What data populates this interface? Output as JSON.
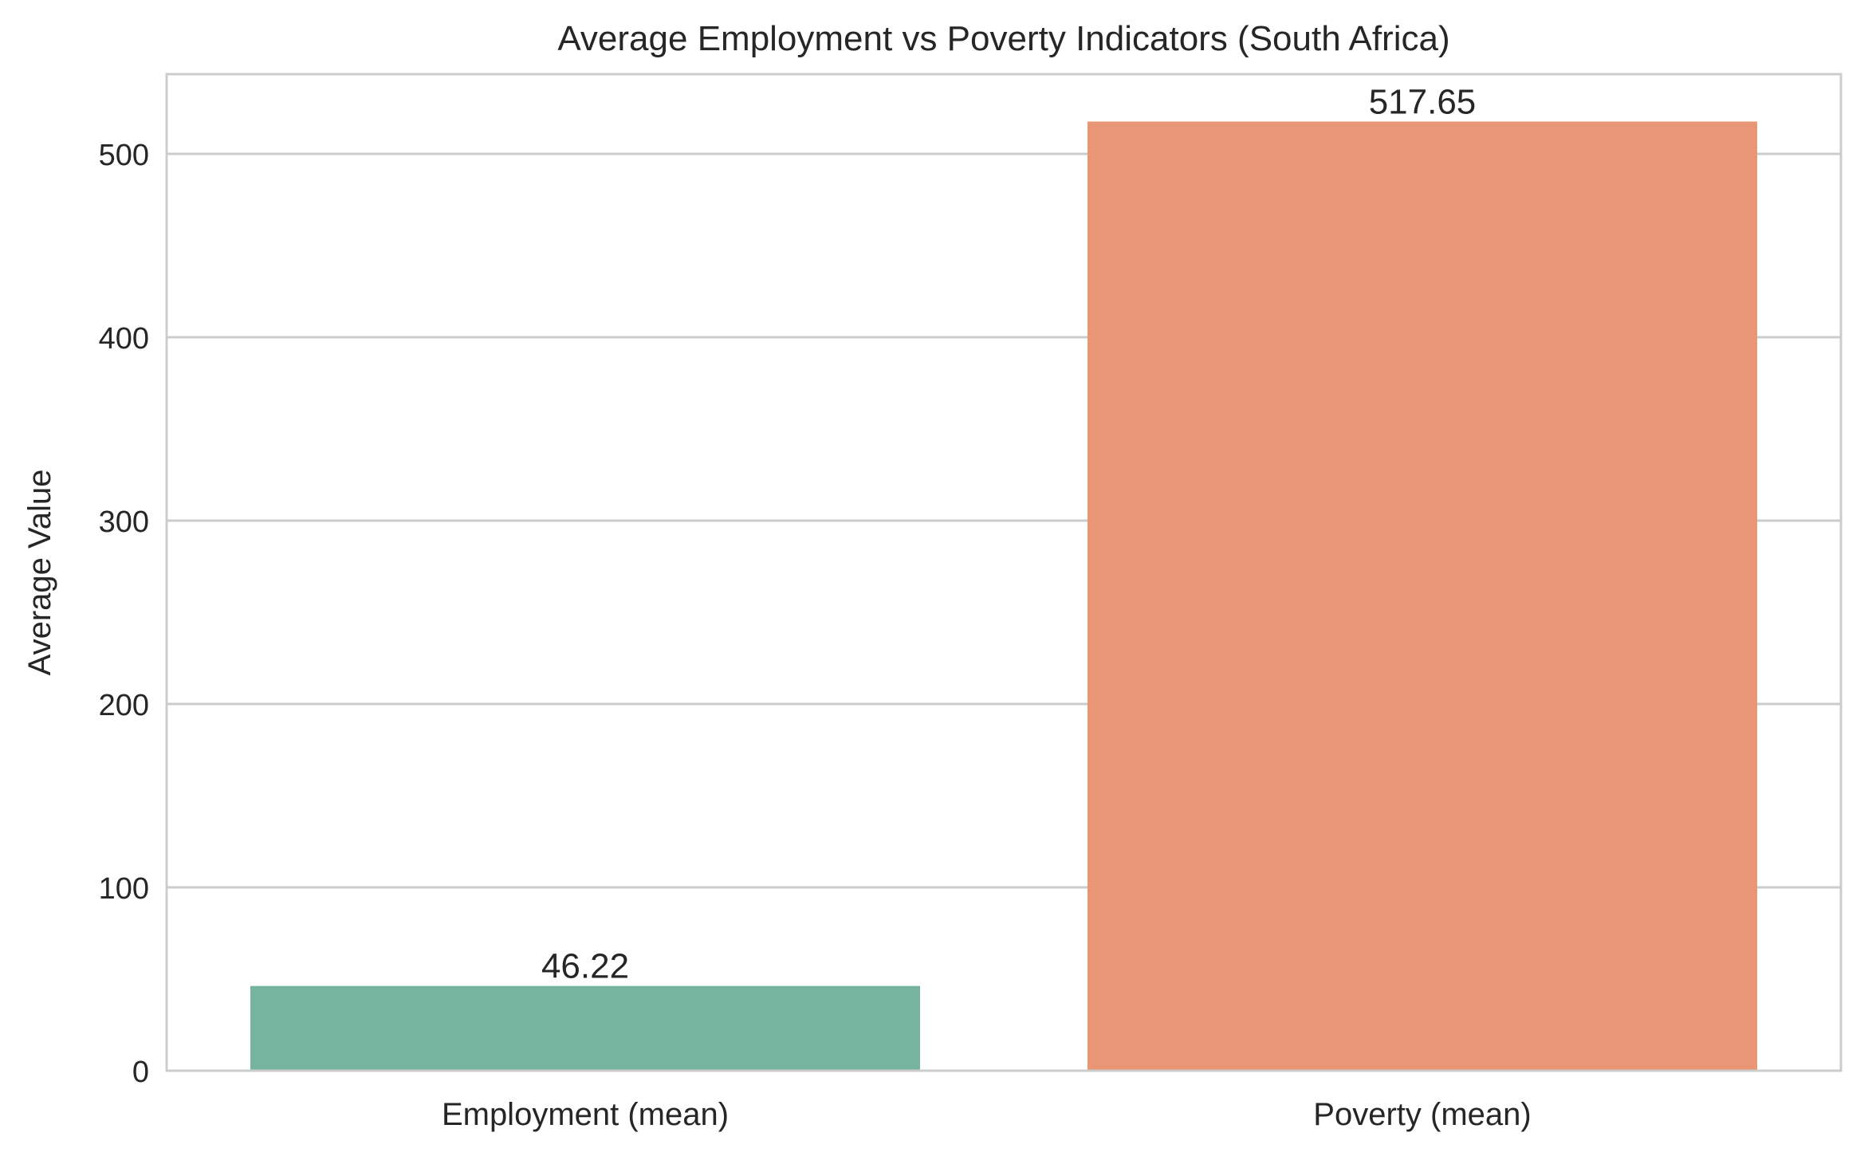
{
  "chart_data": {
    "type": "bar",
    "title": "Average Employment vs Poverty Indicators (South Africa)",
    "xlabel": "",
    "ylabel": "Average Value",
    "categories": [
      "Employment (mean)",
      "Poverty (mean)"
    ],
    "values": [
      46.22,
      517.65
    ],
    "value_labels": [
      "46.22",
      "517.65"
    ],
    "colors": [
      "#76b4a0",
      "#e89675"
    ],
    "ylim": [
      0,
      543.5
    ],
    "yticks": [
      0,
      100,
      200,
      300,
      400,
      500
    ],
    "ytick_labels": [
      "0",
      "100",
      "200",
      "300",
      "400",
      "500"
    ],
    "grid": "horizontal",
    "legend": "none"
  }
}
